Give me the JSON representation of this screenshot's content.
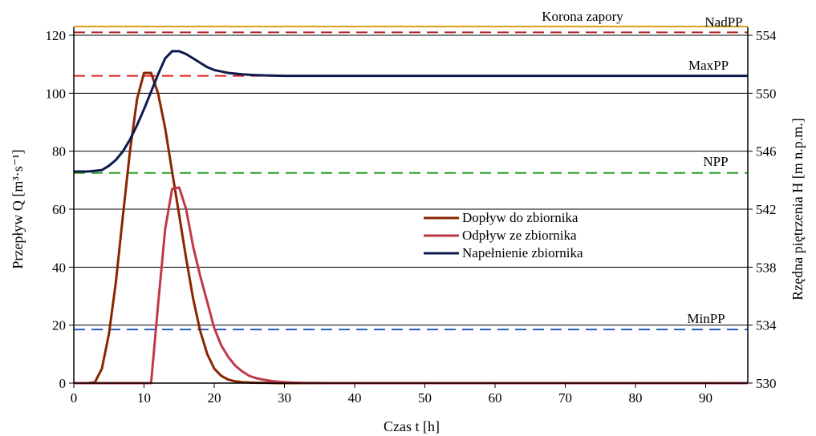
{
  "chart_data": {
    "type": "line",
    "xlabel": "Czas t [h]",
    "ylabel": "Przepływ Q [m³·s⁻¹]",
    "y2label": "Rzędna piętrzenia H [m n.p.m.]",
    "xlim": [
      0,
      96
    ],
    "ylim": [
      0,
      120
    ],
    "y2lim": [
      530,
      554
    ],
    "xticks": [
      "0",
      "10",
      "20",
      "30",
      "40",
      "50",
      "60",
      "70",
      "80",
      "90"
    ],
    "yticks": [
      "0",
      "20",
      "40",
      "60",
      "80",
      "100",
      "120"
    ],
    "y2ticks": [
      "530",
      "534",
      "538",
      "542",
      "546",
      "550",
      "554"
    ],
    "grid": true,
    "legend_position": "center-right",
    "series": [
      {
        "name": "Dopływ do zbiornika",
        "axis": "left",
        "color": "#8b2500",
        "x": [
          0,
          1,
          2,
          3,
          4,
          5,
          6,
          7,
          8,
          9,
          10,
          11,
          12,
          13,
          14,
          15,
          16,
          17,
          18,
          19,
          20,
          21,
          22,
          23,
          24,
          25,
          26,
          27,
          28,
          29,
          30,
          32,
          35,
          40,
          50,
          60,
          70,
          80,
          90,
          96
        ],
        "values": [
          0,
          0,
          0,
          0.3,
          5,
          17,
          35,
          58,
          80,
          98,
          107,
          107,
          100,
          88,
          73,
          58,
          43,
          29,
          18,
          10,
          5,
          2.5,
          1.2,
          0.6,
          0.3,
          0.2,
          0.1,
          0.1,
          0.05,
          0,
          0,
          0,
          0,
          0,
          0,
          0,
          0,
          0,
          0,
          0
        ]
      },
      {
        "name": "Odpływ ze zbiornika",
        "axis": "left",
        "color": "#c0394b",
        "x": [
          0,
          5,
          10,
          11,
          12,
          13,
          14,
          15,
          16,
          17,
          18,
          19,
          20,
          21,
          22,
          23,
          24,
          25,
          26,
          27,
          28,
          29,
          30,
          32,
          34,
          36,
          40,
          50,
          60,
          70,
          80,
          90,
          96
        ],
        "values": [
          0,
          0,
          0,
          0,
          27,
          53,
          67,
          67.5,
          60,
          47,
          37,
          28,
          19,
          13,
          9,
          6,
          4,
          2.5,
          1.7,
          1.2,
          0.8,
          0.5,
          0.3,
          0.1,
          0.05,
          0,
          0,
          0,
          0,
          0,
          0,
          0,
          0
        ]
      },
      {
        "name": "Napełnienie zbiornika",
        "axis": "right",
        "color": "#0d1a4f",
        "x": [
          0,
          2,
          4,
          5,
          6,
          7,
          8,
          9,
          10,
          11,
          12,
          13,
          14,
          15,
          16,
          17,
          18,
          19,
          20,
          21,
          22,
          23,
          24,
          26,
          28,
          30,
          35,
          40,
          50,
          60,
          70,
          80,
          90,
          96
        ],
        "values": [
          544.6,
          544.6,
          544.7,
          545,
          545.4,
          546,
          546.8,
          547.8,
          548.9,
          550.1,
          551.3,
          552.4,
          552.9,
          552.9,
          552.7,
          552.4,
          552.1,
          551.8,
          551.6,
          551.5,
          551.4,
          551.35,
          551.3,
          551.25,
          551.22,
          551.2,
          551.2,
          551.2,
          551.2,
          551.2,
          551.2,
          551.2,
          551.2,
          551.2
        ]
      }
    ],
    "reference_lines": [
      {
        "label": "Korona zapory",
        "axis": "right",
        "value": 554.6,
        "color": "#d4a017",
        "style": "solid"
      },
      {
        "label": "NadPP",
        "axis": "right",
        "value": 554.2,
        "color": "#b22222",
        "style": "dashed"
      },
      {
        "label": "MaxPP",
        "axis": "right",
        "value": 551.2,
        "color": "#e02020",
        "style": "dashed"
      },
      {
        "label": "NPP",
        "axis": "right",
        "value": 544.5,
        "color": "#2aa02a",
        "style": "dashed"
      },
      {
        "label": "MinPP",
        "axis": "right",
        "value": 533.7,
        "color": "#2a5cc0",
        "style": "dashed"
      }
    ]
  }
}
